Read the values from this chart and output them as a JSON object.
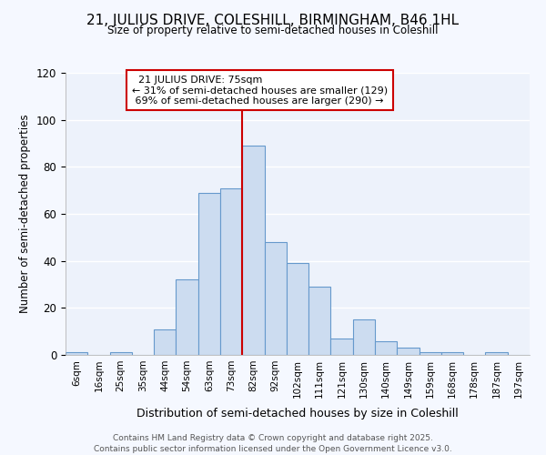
{
  "title_line1": "21, JULIUS DRIVE, COLESHILL, BIRMINGHAM, B46 1HL",
  "title_line2": "Size of property relative to semi-detached houses in Coleshill",
  "xlabel": "Distribution of semi-detached houses by size in Coleshill",
  "ylabel": "Number of semi-detached properties",
  "bar_labels": [
    "6sqm",
    "16sqm",
    "25sqm",
    "35sqm",
    "44sqm",
    "54sqm",
    "63sqm",
    "73sqm",
    "82sqm",
    "92sqm",
    "102sqm",
    "111sqm",
    "121sqm",
    "130sqm",
    "140sqm",
    "149sqm",
    "159sqm",
    "168sqm",
    "178sqm",
    "187sqm",
    "197sqm"
  ],
  "bar_heights": [
    1,
    0,
    1,
    0,
    11,
    32,
    69,
    71,
    89,
    48,
    39,
    29,
    7,
    15,
    6,
    3,
    1,
    1,
    0,
    1,
    0
  ],
  "bar_color": "#ccdcf0",
  "bar_edge_color": "#6699cc",
  "reference_line_x": 7.5,
  "reference_line_label": "21 JULIUS DRIVE: 75sqm",
  "smaller_pct": "31%",
  "smaller_count": 129,
  "larger_pct": "69%",
  "larger_count": 290,
  "annotation_type": "semi-detached",
  "vline_color": "#cc0000",
  "box_edge_color": "#cc0000",
  "background_color": "#f5f8ff",
  "plot_bg_color": "#edf2fb",
  "footer_line1": "Contains HM Land Registry data © Crown copyright and database right 2025.",
  "footer_line2": "Contains public sector information licensed under the Open Government Licence v3.0.",
  "ylim": [
    0,
    120
  ],
  "grid_color": "#ffffff"
}
